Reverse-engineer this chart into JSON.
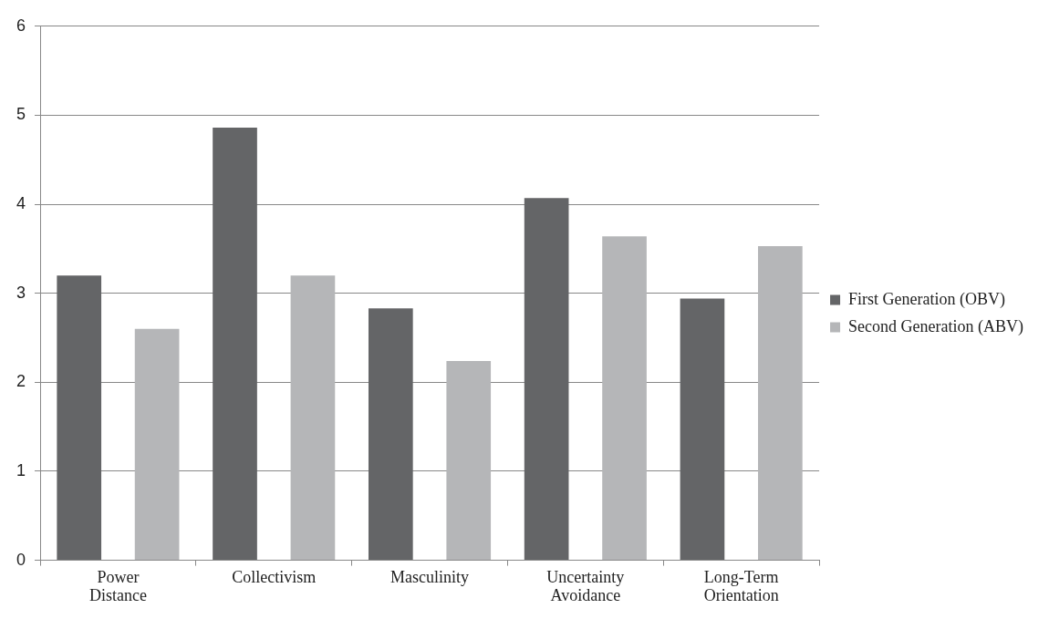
{
  "chart_data": {
    "type": "bar",
    "categories": [
      "Power Distance",
      "Collectivism",
      "Masculinity",
      "Uncertainty Avoidance",
      "Long-Term Orientation"
    ],
    "series": [
      {
        "name": "First Generation (OBV)",
        "color": "#646567",
        "values": [
          3.2,
          4.86,
          2.83,
          4.07,
          2.94
        ]
      },
      {
        "name": "Second Generation (ABV)",
        "color": "#b5b6b8",
        "values": [
          2.6,
          3.2,
          2.24,
          3.64,
          3.53
        ]
      }
    ],
    "ylim": [
      0,
      6
    ],
    "yticks": [
      0,
      1,
      2,
      3,
      4,
      5,
      6
    ],
    "grid": "y",
    "legend": "right"
  }
}
